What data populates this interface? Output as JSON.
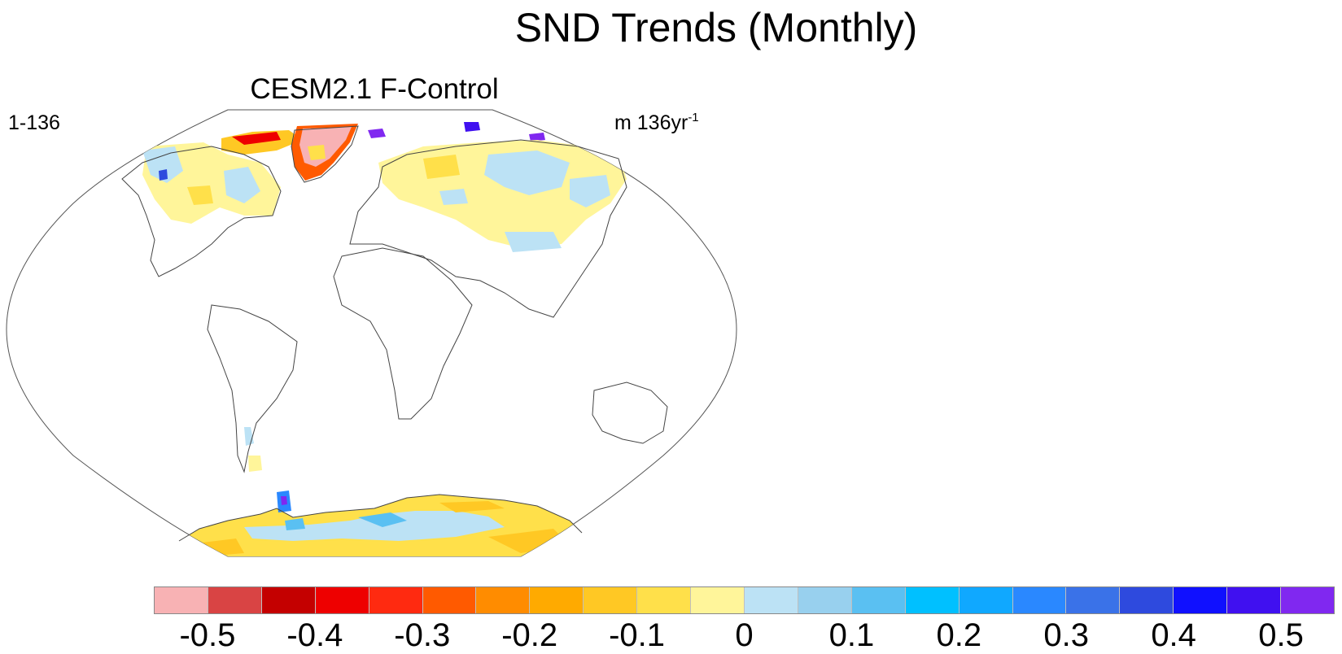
{
  "figure": {
    "title": "SND Trends (Monthly)",
    "subtitle": "CESM2.1 F-Control",
    "left_label": "1-136",
    "right_label_main": "m 136yr",
    "right_label_sup": "-1"
  },
  "map": {
    "projection": "Winkel tripel (global)",
    "features": [
      "coastlines",
      "snow depth trend field over Northern Hemisphere land, Greenland and Antarctica"
    ]
  },
  "colorbar": {
    "colors": [
      "#F8B2B4",
      "#D94444",
      "#C40000",
      "#EE0000",
      "#FF2A10",
      "#FF5A00",
      "#FF8C00",
      "#FFAA00",
      "#FFC824",
      "#FFE04A",
      "#FFF59A",
      "#BCE2F5",
      "#98D0EE",
      "#5AC0F2",
      "#00C0FF",
      "#10A8FF",
      "#2A88FF",
      "#3A72E8",
      "#2E4ADE",
      "#1010FF",
      "#4010F0",
      "#8028F0"
    ],
    "tick_labels": [
      "-0.5",
      "-0.4",
      "-0.3",
      "-0.2",
      "-0.1",
      "0",
      "0.1",
      "0.2",
      "0.3",
      "0.4",
      "0.5"
    ]
  }
}
